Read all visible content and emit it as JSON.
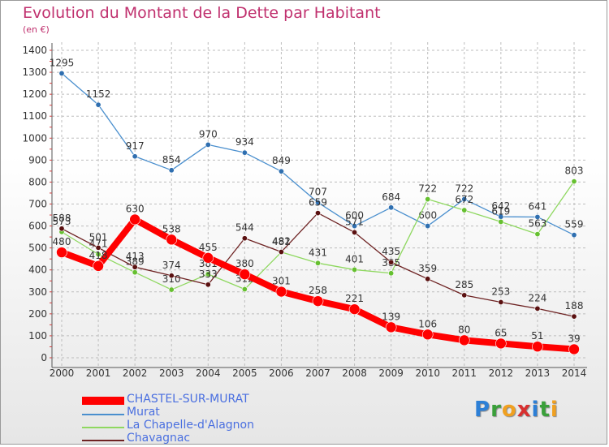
{
  "chart_data": {
    "type": "line",
    "title": "Evolution du Montant de la Dette par Habitant",
    "subtitle": "(en €)",
    "xlabel": "",
    "ylabel": "",
    "ylim": [
      0,
      1400
    ],
    "yticks": [
      0,
      100,
      200,
      300,
      400,
      500,
      600,
      700,
      800,
      900,
      1000,
      1100,
      1200,
      1300,
      1400
    ],
    "categories": [
      "2000",
      "2001",
      "2002",
      "2003",
      "2004",
      "2005",
      "2006",
      "2007",
      "2008",
      "2009",
      "2010",
      "2011",
      "2012",
      "2013",
      "2014"
    ],
    "grid": true,
    "series": [
      {
        "name": "Murat",
        "color": "#4a8fce",
        "values": [
          1295,
          1152,
          917,
          854,
          970,
          934,
          849,
          707,
          600,
          684,
          600,
          722,
          642,
          641,
          559
        ]
      },
      {
        "name": "La Chapelle-d'Alagnon",
        "color": "#8fd860",
        "values": [
          573,
          471,
          389,
          310,
          381,
          312,
          481,
          431,
          401,
          385,
          722,
          672,
          619,
          563,
          803
        ]
      },
      {
        "name": "Chavagnac",
        "color": "#6e2323",
        "values": [
          588,
          501,
          413,
          374,
          333,
          544,
          482,
          659,
          571,
          435,
          359,
          285,
          253,
          224,
          188
        ]
      },
      {
        "name": "CHASTEL-SUR-MURAT",
        "color": "#ff0000",
        "values": [
          480,
          418,
          630,
          538,
          455,
          380,
          301,
          258,
          221,
          139,
          106,
          80,
          65,
          51,
          39
        ]
      }
    ]
  },
  "legend": [
    {
      "name": "CHASTEL-SUR-MURAT",
      "color": "#ff0000"
    },
    {
      "name": "Murat",
      "color": "#4a8fce"
    },
    {
      "name": "La Chapelle-d'Alagnon",
      "color": "#8fd860"
    },
    {
      "name": "Chavagnac",
      "color": "#6e2323"
    }
  ],
  "logo": {
    "p": "P",
    "r": "r",
    "o": "o",
    "x": "x",
    "i1": "i",
    "t": "t",
    "i2": "i"
  }
}
